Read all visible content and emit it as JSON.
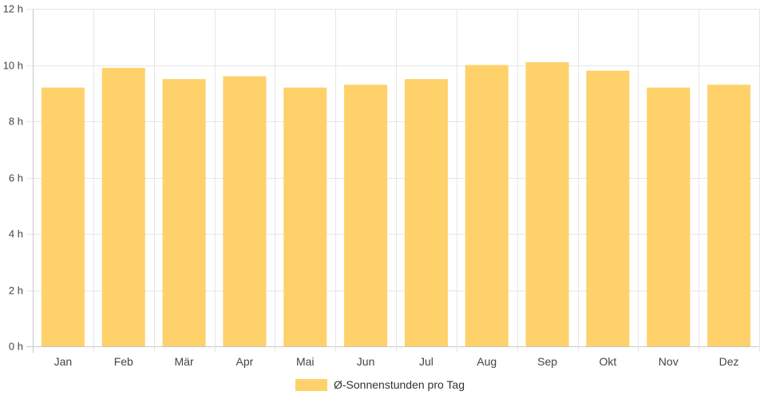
{
  "chart_data": {
    "type": "bar",
    "categories": [
      "Jan",
      "Feb",
      "Mär",
      "Apr",
      "Mai",
      "Jun",
      "Jul",
      "Aug",
      "Sep",
      "Okt",
      "Nov",
      "Dez"
    ],
    "series": [
      {
        "name": "Ø-Sonnenstunden pro Tag",
        "values": [
          9.2,
          9.9,
          9.5,
          9.6,
          9.2,
          9.3,
          9.5,
          10.0,
          10.1,
          9.8,
          9.2,
          9.3
        ],
        "color": "#fed16a"
      }
    ],
    "ylim": [
      0,
      12
    ],
    "yticks": [
      0,
      2,
      4,
      6,
      8,
      10,
      12
    ],
    "ytick_labels": [
      "0 h",
      "2 h",
      "4 h",
      "6 h",
      "8 h",
      "10 h",
      "12 h"
    ],
    "grid": true,
    "legend_position": "bottom"
  },
  "legend": {
    "label": "Ø-Sonnenstunden pro Tag",
    "color": "#fed16a"
  }
}
